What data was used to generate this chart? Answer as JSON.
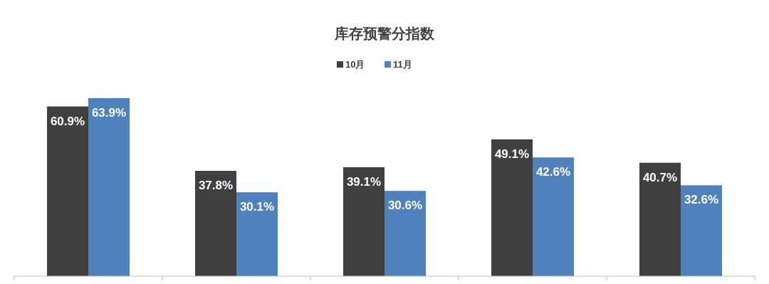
{
  "chart_data": {
    "type": "bar",
    "title": "库存预警分指数",
    "categories": [
      null,
      null,
      null,
      null,
      null
    ],
    "legend": "top",
    "series": [
      {
        "name": "10月",
        "color": "#404040",
        "values": [
          60.9,
          37.8,
          39.1,
          49.1,
          40.7
        ],
        "value_labels": [
          "60.9%",
          "37.8%",
          "39.1%",
          "49.1%",
          "40.7%"
        ]
      },
      {
        "name": "11月",
        "color": "#4f81bd",
        "values": [
          63.9,
          30.1,
          30.6,
          42.6,
          32.6
        ],
        "value_labels": [
          "63.9%",
          "30.1%",
          "30.6%",
          "42.6%",
          "32.6%"
        ]
      }
    ]
  }
}
